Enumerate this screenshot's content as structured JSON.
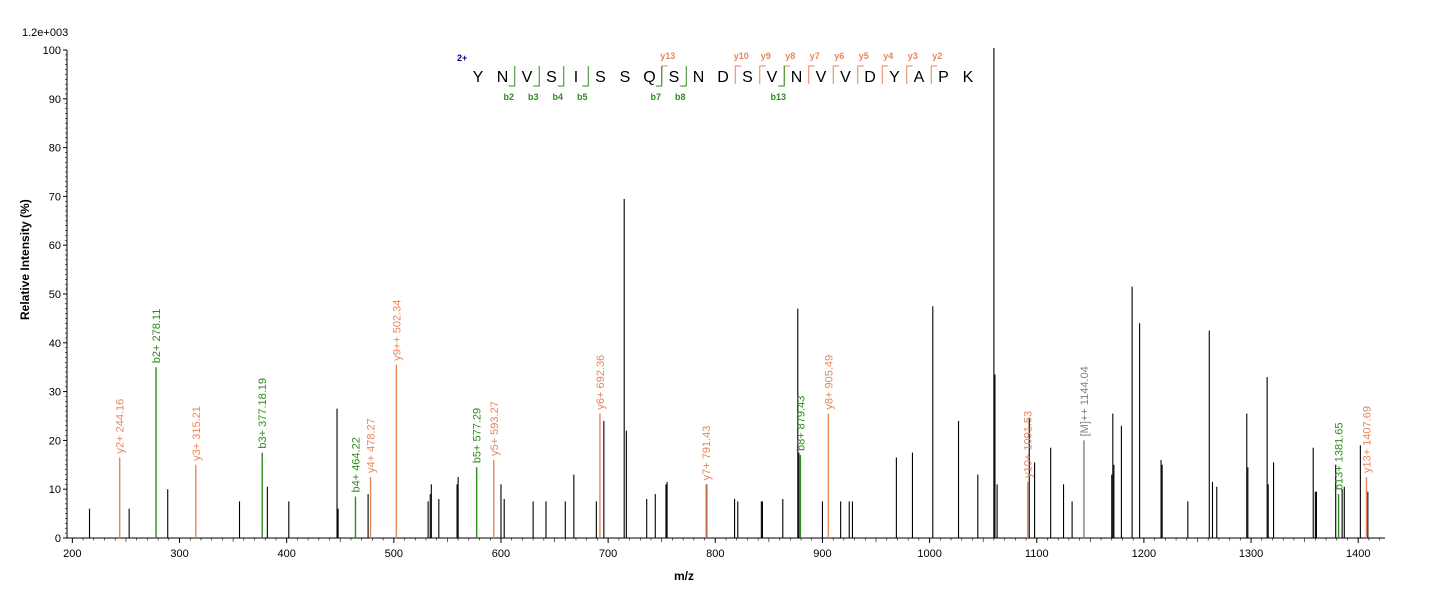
{
  "chart_data": {
    "type": "bar",
    "scale_label": "1.2e+003",
    "ylabel": "Relative   Intensity (%)",
    "xlabel": "m/z",
    "xlim": [
      195,
      1425
    ],
    "ylim": [
      0,
      100
    ],
    "xticks": [
      200,
      300,
      400,
      500,
      600,
      700,
      800,
      900,
      1000,
      1100,
      1200,
      1300,
      1400
    ],
    "yticks": [
      0,
      10,
      20,
      30,
      40,
      50,
      60,
      70,
      80,
      90,
      100
    ],
    "colors": {
      "unassigned": "#000000",
      "y_ion": "#e8865a",
      "b_ion": "#2e8b1e",
      "precursor": "#808080",
      "charge": "#00008b"
    },
    "peaks": [
      [
        216,
        6
      ],
      [
        253,
        6
      ],
      [
        289,
        10
      ],
      [
        356,
        7.5
      ],
      [
        382,
        10.5
      ],
      [
        402,
        7.5
      ],
      [
        447,
        26.5
      ],
      [
        448,
        6
      ],
      [
        476,
        9
      ],
      [
        532,
        7.5
      ],
      [
        534,
        9
      ],
      [
        535,
        11
      ],
      [
        542,
        8
      ],
      [
        559,
        11
      ],
      [
        560,
        12.5
      ],
      [
        600,
        11
      ],
      [
        603,
        8
      ],
      [
        630,
        7.5
      ],
      [
        642,
        7.5
      ],
      [
        660,
        7.5
      ],
      [
        668,
        13
      ],
      [
        689,
        7.5
      ],
      [
        696,
        24
      ],
      [
        715,
        69.5
      ],
      [
        717,
        22
      ],
      [
        736,
        8
      ],
      [
        744,
        9
      ],
      [
        754,
        11
      ],
      [
        755,
        11.5
      ],
      [
        792,
        11
      ],
      [
        818,
        8
      ],
      [
        821,
        7.5
      ],
      [
        843,
        7.5
      ],
      [
        844,
        7.5
      ],
      [
        863,
        8
      ],
      [
        877,
        47
      ],
      [
        878,
        17.5
      ],
      [
        900,
        7.5
      ],
      [
        917,
        7.5
      ],
      [
        925,
        7.5
      ],
      [
        928,
        7.5
      ],
      [
        969,
        16.5
      ],
      [
        984,
        17.5
      ],
      [
        1003,
        47.5
      ],
      [
        1027,
        24
      ],
      [
        1045,
        13
      ],
      [
        1060,
        101.5
      ],
      [
        1061,
        33.5
      ],
      [
        1063,
        11
      ],
      [
        1093,
        24.5
      ],
      [
        1098,
        15.5
      ],
      [
        1113,
        18.5
      ],
      [
        1125,
        11
      ],
      [
        1133,
        7.5
      ],
      [
        1170,
        13
      ],
      [
        1171,
        25.5
      ],
      [
        1172,
        15
      ],
      [
        1179,
        23
      ],
      [
        1189,
        51.5
      ],
      [
        1196,
        44
      ],
      [
        1216,
        16
      ],
      [
        1217,
        15
      ],
      [
        1241,
        7.5
      ],
      [
        1261,
        42.5
      ],
      [
        1264,
        11.5
      ],
      [
        1268,
        10.5
      ],
      [
        1296,
        25.5
      ],
      [
        1297,
        14.5
      ],
      [
        1315,
        33
      ],
      [
        1316,
        11
      ],
      [
        1321,
        15.5
      ],
      [
        1358,
        18.5
      ],
      [
        1360,
        9.5
      ],
      [
        1361,
        9.5
      ],
      [
        1379,
        15
      ],
      [
        1385,
        10
      ],
      [
        1387,
        10.5
      ],
      [
        1402,
        19
      ],
      [
        1409,
        9.5
      ]
    ],
    "annotated_peaks": [
      {
        "mz": 244.16,
        "intensity": 16.5,
        "label": "y2+ 244.16",
        "ion": "y"
      },
      {
        "mz": 278.11,
        "intensity": 35,
        "label": "b2+ 278.11",
        "ion": "b"
      },
      {
        "mz": 315.21,
        "intensity": 15,
        "label": "y3+ 315.21",
        "ion": "y"
      },
      {
        "mz": 377.18,
        "intensity": 17.5,
        "label": "b3+ 377.18.19",
        "ion": "b"
      },
      {
        "mz": 464.22,
        "intensity": 8.5,
        "label": "b4+ 464.22",
        "ion": "b"
      },
      {
        "mz": 478.27,
        "intensity": 12.5,
        "label": "y4+ 478.27",
        "ion": "y"
      },
      {
        "mz": 502.34,
        "intensity": 35.5,
        "label": "y9++ 502.34",
        "ion": "y"
      },
      {
        "mz": 577.29,
        "intensity": 14.5,
        "label": "b5+ 577.29",
        "ion": "b"
      },
      {
        "mz": 593.27,
        "intensity": 16,
        "label": "y5+ 593.27",
        "ion": "y"
      },
      {
        "mz": 692.36,
        "intensity": 25.5,
        "label": "y6+ 692.36",
        "ion": "y"
      },
      {
        "mz": 791.43,
        "intensity": 11,
        "label": "y7+ 791.43",
        "ion": "y"
      },
      {
        "mz": 879.43,
        "intensity": 17,
        "label": "b8+ 879.43",
        "ion": "b"
      },
      {
        "mz": 905.49,
        "intensity": 25.5,
        "label": "y8+ 905.49",
        "ion": "y"
      },
      {
        "mz": 1091.53,
        "intensity": 11.5,
        "label": "y10+ 1091.53",
        "ion": "y"
      },
      {
        "mz": 1144.04,
        "intensity": 20,
        "label": "[M]++ 1144.04",
        "ion": "precursor"
      },
      {
        "mz": 1381.65,
        "intensity": 9,
        "label": "b13+ 1381.65",
        "ion": "b"
      },
      {
        "mz": 1407.69,
        "intensity": 12.5,
        "label": "y13+ 1407.69",
        "ion": "y"
      }
    ],
    "peptide": {
      "charge": "2+",
      "sequence": [
        "Y",
        "N",
        "V",
        "S",
        "I",
        "S",
        "S",
        "Q",
        "S",
        "N",
        "D",
        "S",
        "V",
        "N",
        "V",
        "V",
        "D",
        "Y",
        "A",
        "P",
        "K"
      ],
      "y_ions": [
        {
          "after": 8,
          "label": "y13"
        },
        {
          "after": 11,
          "label": "y10"
        },
        {
          "after": 12,
          "label": "y9"
        },
        {
          "after": 13,
          "label": "y8"
        },
        {
          "after": 14,
          "label": "y7"
        },
        {
          "after": 15,
          "label": "y6"
        },
        {
          "after": 16,
          "label": "y5"
        },
        {
          "after": 17,
          "label": "y4"
        },
        {
          "after": 18,
          "label": "y3"
        },
        {
          "after": 19,
          "label": "y2"
        }
      ],
      "b_ions": [
        {
          "after": 2,
          "label": "b2"
        },
        {
          "after": 3,
          "label": "b3"
        },
        {
          "after": 4,
          "label": "b4"
        },
        {
          "after": 5,
          "label": "b5"
        },
        {
          "after": 8,
          "label": "b7"
        },
        {
          "after": 9,
          "label": "b8"
        },
        {
          "after": 13,
          "label": "b13"
        }
      ]
    }
  }
}
